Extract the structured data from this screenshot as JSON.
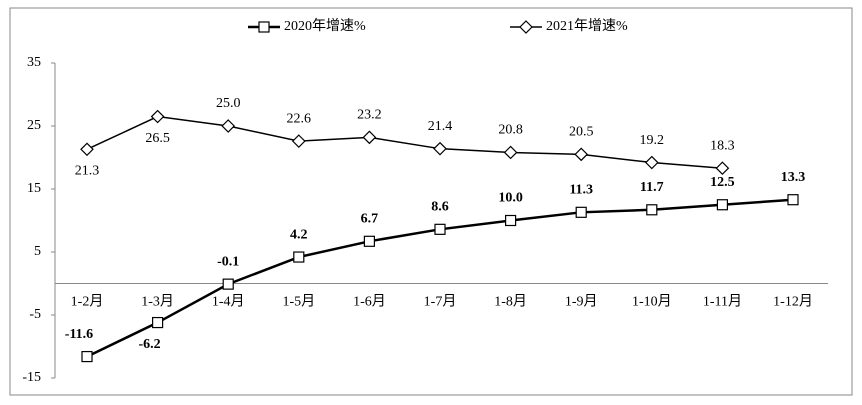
{
  "chart_data": {
    "type": "line",
    "categories": [
      "1-2月",
      "1-3月",
      "1-4月",
      "1-5月",
      "1-6月",
      "1-7月",
      "1-8月",
      "1-9月",
      "1-10月",
      "1-11月",
      "1-12月"
    ],
    "series": [
      {
        "name": "2020年增速%",
        "color": "#000000",
        "marker": "square",
        "values": [
          -11.6,
          -6.2,
          -0.1,
          4.2,
          6.7,
          8.6,
          10.0,
          11.3,
          11.7,
          12.5,
          13.3
        ],
        "value_labels": [
          "-11.6",
          "-6.2",
          "-0.1",
          "4.2",
          "6.7",
          "8.6",
          "10.0",
          "11.3",
          "11.7",
          "12.5",
          "13.3"
        ]
      },
      {
        "name": "2021年增速%",
        "color": "#000000",
        "marker": "diamond",
        "values": [
          21.3,
          26.5,
          25.0,
          22.6,
          23.2,
          21.4,
          20.8,
          20.5,
          19.2,
          18.3,
          null
        ],
        "value_labels": [
          "21.3",
          "26.5",
          "25.0",
          "22.6",
          "23.2",
          "21.4",
          "20.8",
          "20.5",
          "19.2",
          "18.3",
          null
        ]
      }
    ],
    "ylim": [
      -15,
      35
    ],
    "yticks": [
      -15,
      -5,
      5,
      15,
      25,
      35
    ],
    "legend": "top"
  }
}
